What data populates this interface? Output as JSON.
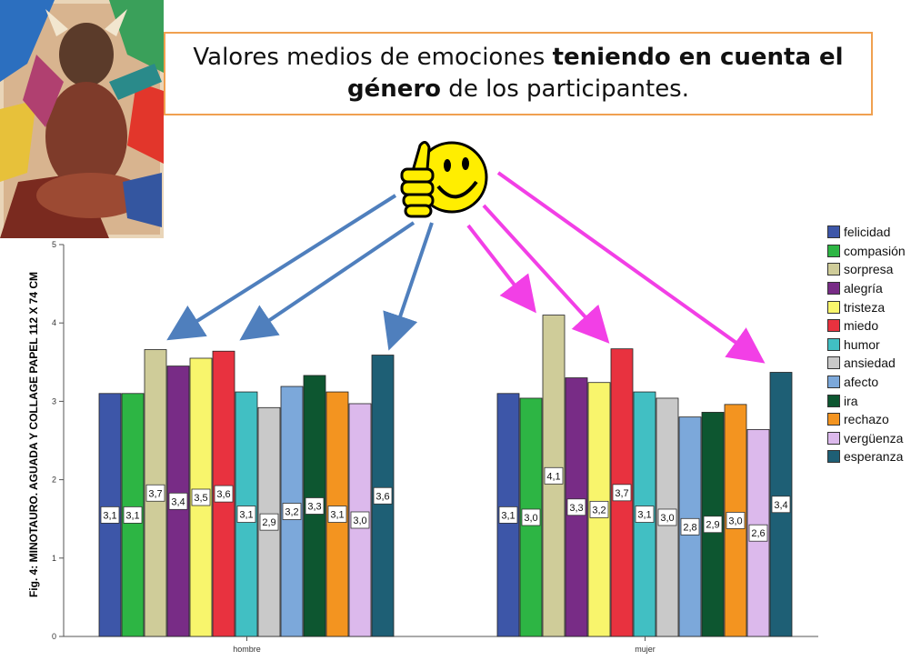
{
  "title": {
    "part1": "Valores medios de emociones ",
    "bold1": "teniendo en cuenta el",
    "bold2": "género",
    "part2": " de los participantes."
  },
  "side_label": "Fig. 4: MINOTAURO. AGUADA Y COLLAGE PAPEL 112 X 74 CM",
  "chart_data": {
    "type": "bar",
    "categories": [
      "hombre",
      "mujer"
    ],
    "ylim": [
      0,
      5
    ],
    "yticks": [
      "0",
      "1",
      "2",
      "3",
      "4",
      "5"
    ],
    "legend_position": "right",
    "grid": false,
    "series": [
      {
        "name": "felicidad",
        "color": "#3d56a8",
        "values": [
          3.1,
          3.1
        ],
        "labels": [
          "3,1",
          "3,1"
        ]
      },
      {
        "name": "compasión",
        "color": "#2db544",
        "values": [
          3.1,
          3.04
        ],
        "labels": [
          "3,1",
          "3,0"
        ]
      },
      {
        "name": "sorpresa",
        "color": "#cfcc99",
        "values": [
          3.66,
          4.1
        ],
        "labels": [
          "3,7",
          "4,1"
        ]
      },
      {
        "name": "alegría",
        "color": "#782c86",
        "values": [
          3.45,
          3.3
        ],
        "labels": [
          "3,4",
          "3,3"
        ]
      },
      {
        "name": "tristeza",
        "color": "#f8f56c",
        "values": [
          3.55,
          3.24
        ],
        "labels": [
          "3,5",
          "3,2"
        ]
      },
      {
        "name": "miedo",
        "color": "#e8323f",
        "values": [
          3.64,
          3.67
        ],
        "labels": [
          "3,6",
          "3,7"
        ]
      },
      {
        "name": "humor",
        "color": "#41bfc3",
        "values": [
          3.12,
          3.12
        ],
        "labels": [
          "3,1",
          "3,1"
        ]
      },
      {
        "name": "ansiedad",
        "color": "#c9c9c9",
        "values": [
          2.92,
          3.04
        ],
        "labels": [
          "2,9",
          "3,0"
        ]
      },
      {
        "name": "afecto",
        "color": "#7ca8da",
        "values": [
          3.19,
          2.8
        ],
        "labels": [
          "3,2",
          "2,8"
        ]
      },
      {
        "name": "ira",
        "color": "#0d5630",
        "values": [
          3.33,
          2.86
        ],
        "labels": [
          "3,3",
          "2,9"
        ]
      },
      {
        "name": "rechazo",
        "color": "#f39420",
        "values": [
          3.12,
          2.96
        ],
        "labels": [
          "3,1",
          "3,0"
        ]
      },
      {
        "name": "vergüenza",
        "color": "#dcb9ec",
        "values": [
          2.97,
          2.64
        ],
        "labels": [
          "3,0",
          "2,6"
        ]
      },
      {
        "name": "esperanza",
        "color": "#1e5f75",
        "values": [
          3.59,
          3.37
        ],
        "labels": [
          "3,6",
          "3,4"
        ]
      }
    ]
  },
  "colors": {
    "title_border": "#f0a050",
    "arrow_blue": "#4f7fbd",
    "arrow_magenta": "#f23fe6",
    "smiley_yellow": "#ffee00"
  },
  "icons": [
    "minotaur-artwork",
    "thumbs-up-smiley-icon"
  ]
}
